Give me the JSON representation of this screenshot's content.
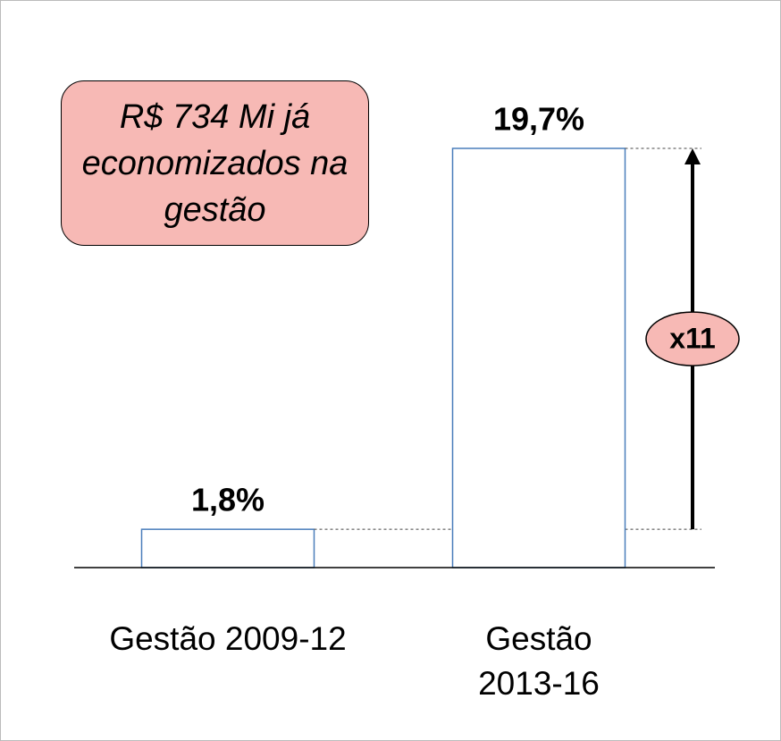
{
  "chart_data": {
    "type": "bar",
    "categories": [
      "Gestão 2009-12",
      "Gestão 2013-16"
    ],
    "values": [
      1.8,
      19.7
    ],
    "value_labels": [
      "1,8%",
      "19,7%"
    ],
    "color": "#4a7ebb",
    "annotations": [
      "R$ 734 Mi já economizados na gestão",
      "x11"
    ]
  }
}
